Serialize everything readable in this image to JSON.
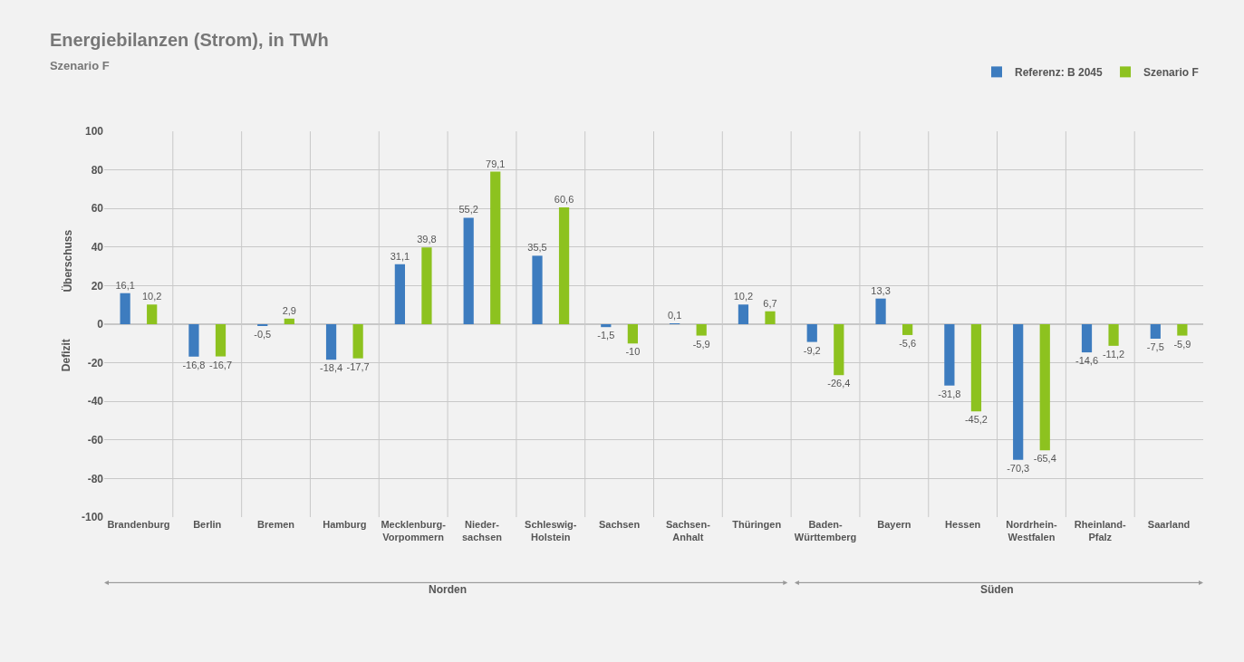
{
  "chart_data": {
    "type": "bar",
    "title": "Energiebilanzen (Strom), in TWh",
    "subtitle": "Szenario F",
    "categories": [
      "Brandenburg",
      "Berlin",
      "Bremen",
      "Hamburg",
      "Mecklenburg-\nVorpommern",
      "Nieder-\nsachsen",
      "Schleswig-\nHolstein",
      "Sachsen",
      "Sachsen-\nAnhalt",
      "Thüringen",
      "Baden-\nWürttemberg",
      "Bayern",
      "Hessen",
      "Nordrhein-\nWestfalen",
      "Rheinland-\nPfalz",
      "Saarland"
    ],
    "series": [
      {
        "name": "Referenz: B 2045",
        "color": "#3d7cbf",
        "values": [
          16.1,
          -16.8,
          -0.5,
          -18.4,
          31.1,
          55.2,
          35.5,
          -1.5,
          0.1,
          10.2,
          -9.2,
          13.3,
          -31.8,
          -70.3,
          -14.6,
          -7.5
        ],
        "value_labels": [
          "16,1",
          "-16,8",
          "-0,5",
          "-18,4",
          "31,1",
          "55,2",
          "35,5",
          "-1,5",
          "0,1",
          "10,2",
          "-9,2",
          "13,3",
          "-31,8",
          "-70,3",
          "-14,6",
          "-7,5"
        ]
      },
      {
        "name": "Szenario F",
        "color": "#8dc21f",
        "values": [
          10.2,
          -16.7,
          2.9,
          -17.7,
          39.8,
          79.1,
          60.6,
          -10,
          -5.9,
          6.7,
          -26.4,
          -5.6,
          -45.2,
          -65.4,
          -11.2,
          -5.9
        ],
        "value_labels": [
          "10,2",
          "-16,7",
          "2,9",
          "-17,7",
          "39,8",
          "79,1",
          "60,6",
          "-10",
          "-5,9",
          "6,7",
          "-26,4",
          "-5,6",
          "-45,2",
          "-65,4",
          "-11,2",
          "-5,9"
        ]
      }
    ],
    "ylim": [
      -100,
      100
    ],
    "yticks": [
      -100,
      -80,
      -60,
      -40,
      -20,
      0,
      20,
      40,
      60,
      80,
      100
    ],
    "annotations": [
      "Überschuss",
      "Defizit",
      "Norden",
      "Süden"
    ],
    "grid": true,
    "legend": "top right"
  }
}
